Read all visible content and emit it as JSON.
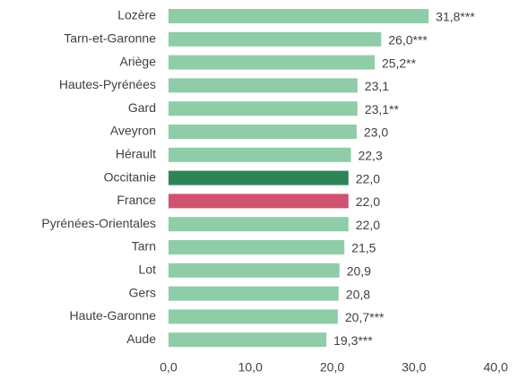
{
  "chart_data": {
    "type": "barh",
    "categories": [
      "Lozère",
      "Tarn-et-Garonne",
      "Ariège",
      "Hautes-Pyrénées",
      "Gard",
      "Aveyron",
      "Hérault",
      "Occitanie",
      "France",
      "Pyrénées-Orientales",
      "Tarn",
      "Lot",
      "Gers",
      "Haute-Garonne",
      "Aude"
    ],
    "values": [
      31.8,
      26.0,
      25.2,
      23.1,
      23.1,
      23.0,
      22.3,
      22.0,
      22.0,
      22.0,
      21.5,
      20.9,
      20.8,
      20.7,
      19.3
    ],
    "value_labels": [
      "31,8***",
      "26,0***",
      "25,2**",
      "23,1",
      "23,1**",
      "23,0",
      "22,3",
      "22,0",
      "22,0",
      "22,0",
      "21,5",
      "20,9",
      "20,8",
      "20,7***",
      "19,3***"
    ],
    "colors": [
      "#8fcca8",
      "#8fcca8",
      "#8fcca8",
      "#8fcca8",
      "#8fcca8",
      "#8fcca8",
      "#8fcca8",
      "#2e8457",
      "#cf5370",
      "#8fcca8",
      "#8fcca8",
      "#8fcca8",
      "#8fcca8",
      "#8fcca8",
      "#8fcca8"
    ],
    "xlim": [
      0,
      40
    ],
    "xticks": [
      {
        "value": 0,
        "label": "0,0"
      },
      {
        "value": 10,
        "label": "10,0"
      },
      {
        "value": 20,
        "label": "20,0"
      },
      {
        "value": 30,
        "label": "30,0"
      },
      {
        "value": 40,
        "label": "40,0"
      }
    ]
  }
}
